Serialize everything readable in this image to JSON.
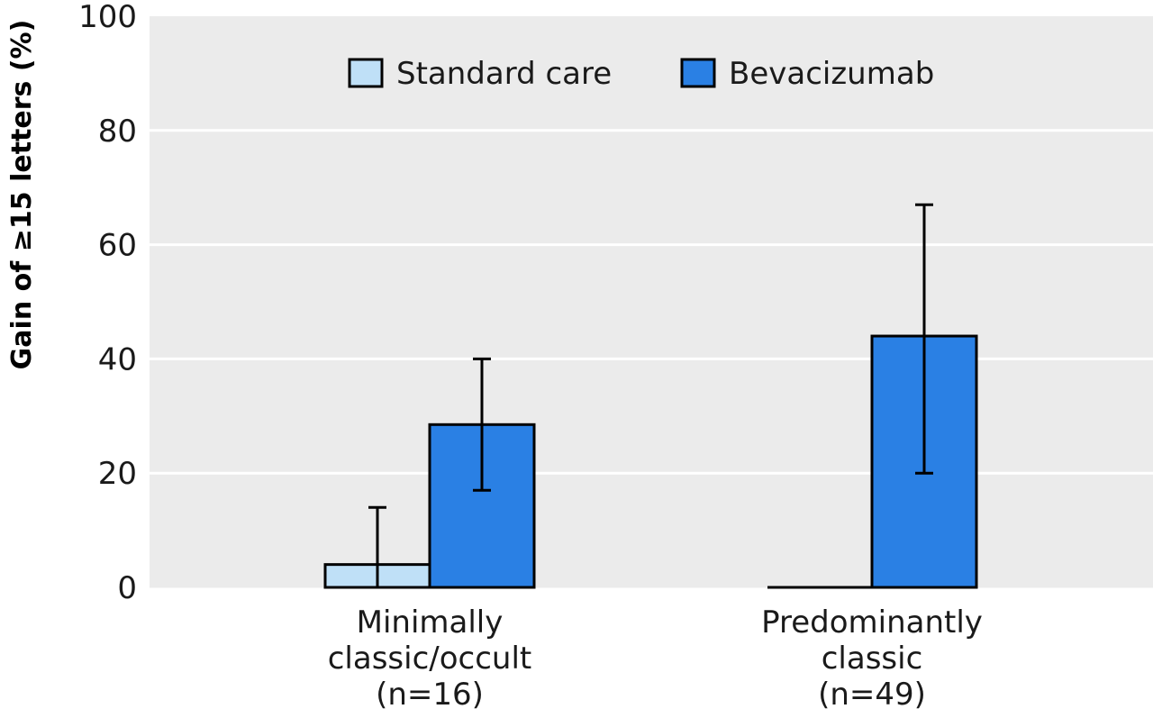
{
  "chart_data": {
    "type": "bar",
    "title": "",
    "xlabel": "",
    "ylabel": "Gain of ≥15 letters (%)",
    "ylim": [
      0,
      100
    ],
    "yticks": [
      0,
      20,
      40,
      60,
      80,
      100
    ],
    "grid": true,
    "legend_position": "top-center",
    "categories": [
      [
        "Minimally",
        "classic/occult",
        "(n=16)"
      ],
      [
        "Predominantly",
        "classic",
        "(n=49)"
      ]
    ],
    "series": [
      {
        "name": "Standard care",
        "color": "#bfe0f7",
        "values": [
          4,
          0
        ],
        "error_low": [
          0,
          0
        ],
        "error_high": [
          14,
          0
        ]
      },
      {
        "name": "Bevacizumab",
        "color": "#2a80e4",
        "values": [
          28.5,
          44
        ],
        "error_low": [
          17,
          20
        ],
        "error_high": [
          40,
          67
        ]
      }
    ]
  }
}
